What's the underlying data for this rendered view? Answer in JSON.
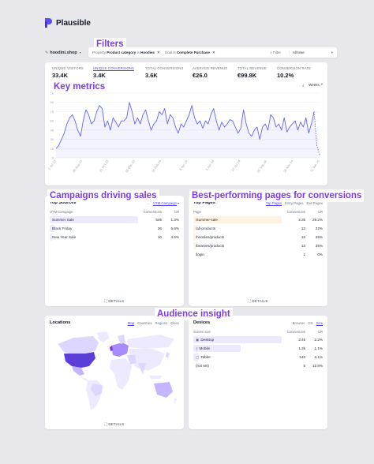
{
  "brand": {
    "name": "Plausible"
  },
  "annotations": {
    "filters": "Filters",
    "key_metrics": "Key metrics",
    "campaigns": "Campaigns driving sales",
    "pages": "Best-performing pages for conversions",
    "audience": "Audience insight"
  },
  "topbar": {
    "site": "hoodini.shop",
    "filter1_prefix": "Property",
    "filter1_key": "Product category",
    "filter1_op": "is",
    "filter1_val": "Hoodies",
    "filter2_prefix": "Goal",
    "filter2_op": "is",
    "filter2_val": "Complete Purchase",
    "filter_button": "Filter",
    "period": "All time"
  },
  "metrics": [
    {
      "label": "UNIQUE VISITORS",
      "value": "33.4K"
    },
    {
      "label": "UNIQUE CONVERSIONS",
      "value": "3.4K"
    },
    {
      "label": "TOTAL CONVERSIONS",
      "value": "3.6K"
    },
    {
      "label": "AVERAGE REVENUE",
      "value": "€26.0"
    },
    {
      "label": "TOTAL REVENUE",
      "value": "€99.8K"
    },
    {
      "label": "CONVERSION RATE",
      "value": "10.2%"
    }
  ],
  "interval": "Weeks",
  "chart_data": {
    "type": "line",
    "y_ticks": [
      "0",
      "15",
      "30",
      "45",
      "60",
      "75",
      "90",
      "1k"
    ],
    "x_ticks": [
      "1 Jul 23",
      "26 Aug 23",
      "21 Oct 23",
      "16 Dec 23",
      "10 Feb 24",
      "6 Apr 24",
      "1 Jun 24",
      "27 Jul 24",
      "21 Sep 24",
      "16 Nov 24",
      "11 Jan 25"
    ],
    "values": [
      15,
      20,
      30,
      40,
      55,
      65,
      70,
      60,
      45,
      35,
      60,
      78,
      70,
      55,
      60,
      75,
      85,
      80,
      50,
      60,
      45,
      65,
      58,
      50,
      60,
      60,
      65,
      90,
      75,
      55,
      65,
      55,
      70,
      78,
      60,
      45,
      55,
      60,
      75,
      70,
      80,
      55,
      70,
      65,
      50,
      40,
      55,
      50,
      60,
      70,
      85,
      65,
      55,
      60,
      48,
      60,
      55,
      70,
      80,
      60,
      45,
      58,
      50,
      55,
      62,
      60,
      50,
      40,
      48,
      78,
      55,
      40,
      35,
      45,
      50,
      30,
      50,
      55,
      45,
      70,
      65,
      50,
      55,
      45,
      65,
      42,
      50,
      55,
      60,
      45,
      58,
      50,
      65,
      40,
      55,
      75,
      20,
      5
    ],
    "ylim": [
      0,
      105
    ],
    "dashed_from_index": 95
  },
  "sources": {
    "title": "Top Sources",
    "tab": "UTM Campaign",
    "col_name": "UTM Campaign",
    "col_conv": "Conversions",
    "col_cr": "CR",
    "rows": [
      {
        "name": "Summer Sale",
        "conversions": "546",
        "cr": "1.3%",
        "share": 1.0
      },
      {
        "name": "Black Friday",
        "conversions": "26",
        "cr": "6.6%",
        "share": 0.05
      },
      {
        "name": "New Year Sale",
        "conversions": "10",
        "cr": "4.6%",
        "share": 0.02
      }
    ],
    "details": "DETAILS"
  },
  "pages": {
    "title": "Top Pages",
    "tabs": [
      "Top Pages",
      "Entry Pages",
      "Exit Pages"
    ],
    "col_name": "Page",
    "col_conv": "Conversions",
    "col_cr": "CR",
    "rows": [
      {
        "name": "/summer-sale",
        "conversions": "2.3k",
        "cr": "29.2%",
        "share": 1.0
      },
      {
        "name": "/all-products",
        "conversions": "13",
        "cr": "22%",
        "share": 0.01
      },
      {
        "name": "/hoodies/products",
        "conversions": "13",
        "cr": "25%",
        "share": 0.01
      },
      {
        "name": "/beanies/products",
        "conversions": "13",
        "cr": "25%",
        "share": 0.01
      },
      {
        "name": "/login",
        "conversions": "1",
        "cr": "0%",
        "share": 0.0
      }
    ],
    "details": "DETAILS"
  },
  "locations": {
    "title": "Locations",
    "tabs": [
      "Map",
      "Countries",
      "Regions",
      "Cities"
    ],
    "details": "DETAILS"
  },
  "devices": {
    "title": "Devices",
    "tabs": [
      "Browser",
      "OS",
      "Size"
    ],
    "col_name": "Screen size",
    "col_conv": "Conversions",
    "col_cr": "CR",
    "rows": [
      {
        "name": "Desktop",
        "icon": "desktop-icon",
        "conversions": "2.4k",
        "cr": "2.2%",
        "share": 1.0
      },
      {
        "name": "Mobile",
        "icon": "mobile-icon",
        "conversions": "1.3k",
        "cr": "1.1%",
        "share": 0.54
      },
      {
        "name": "Tablet",
        "icon": "tablet-icon",
        "conversions": "140",
        "cr": "2.1%",
        "share": 0.06
      },
      {
        "name": "(not set)",
        "icon": "none",
        "conversions": "5",
        "cr": "12.8%",
        "share": 0.0
      }
    ]
  }
}
